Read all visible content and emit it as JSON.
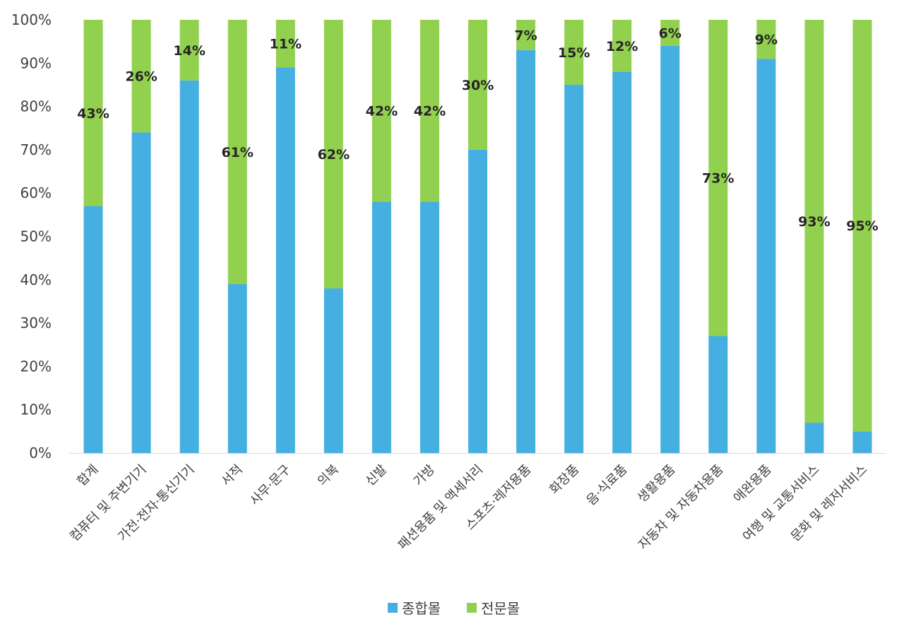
{
  "chart_data": {
    "type": "bar",
    "stacked": true,
    "percent_stacked": true,
    "categories": [
      "합계",
      "컴퓨터 및 주변기기",
      "가전·전자·통신기기",
      "서적",
      "사무·문구",
      "의복",
      "신발",
      "가방",
      "패션용품 및 액세서리",
      "스포츠·레저용품",
      "화장품",
      "음·식료품",
      "생활용품",
      "자동차 및 자동차용품",
      "애완용품",
      "여행 및 교통서비스",
      "문화 및 레저서비스"
    ],
    "series": [
      {
        "name": "종합몰",
        "color": "#45AFE1",
        "values": [
          57,
          74,
          86,
          39,
          89,
          38,
          58,
          58,
          70,
          93,
          85,
          88,
          94,
          27,
          91,
          7,
          5
        ]
      },
      {
        "name": "전문몰",
        "color": "#92D050",
        "values": [
          43,
          26,
          14,
          61,
          11,
          62,
          42,
          42,
          30,
          7,
          15,
          12,
          6,
          73,
          9,
          93,
          95
        ],
        "data_labels": [
          "43%",
          "26%",
          "14%",
          "61%",
          "11%",
          "62%",
          "42%",
          "42%",
          "30%",
          "7%",
          "15%",
          "12%",
          "6%",
          "73%",
          "9%",
          "93%",
          "95%"
        ]
      }
    ],
    "y_ticks": [
      "0%",
      "10%",
      "20%",
      "30%",
      "40%",
      "50%",
      "60%",
      "70%",
      "80%",
      "90%",
      "100%"
    ],
    "ylim": [
      0,
      100
    ],
    "grid": false,
    "legend_position": "bottom",
    "title": "",
    "xlabel": "",
    "ylabel": ""
  }
}
